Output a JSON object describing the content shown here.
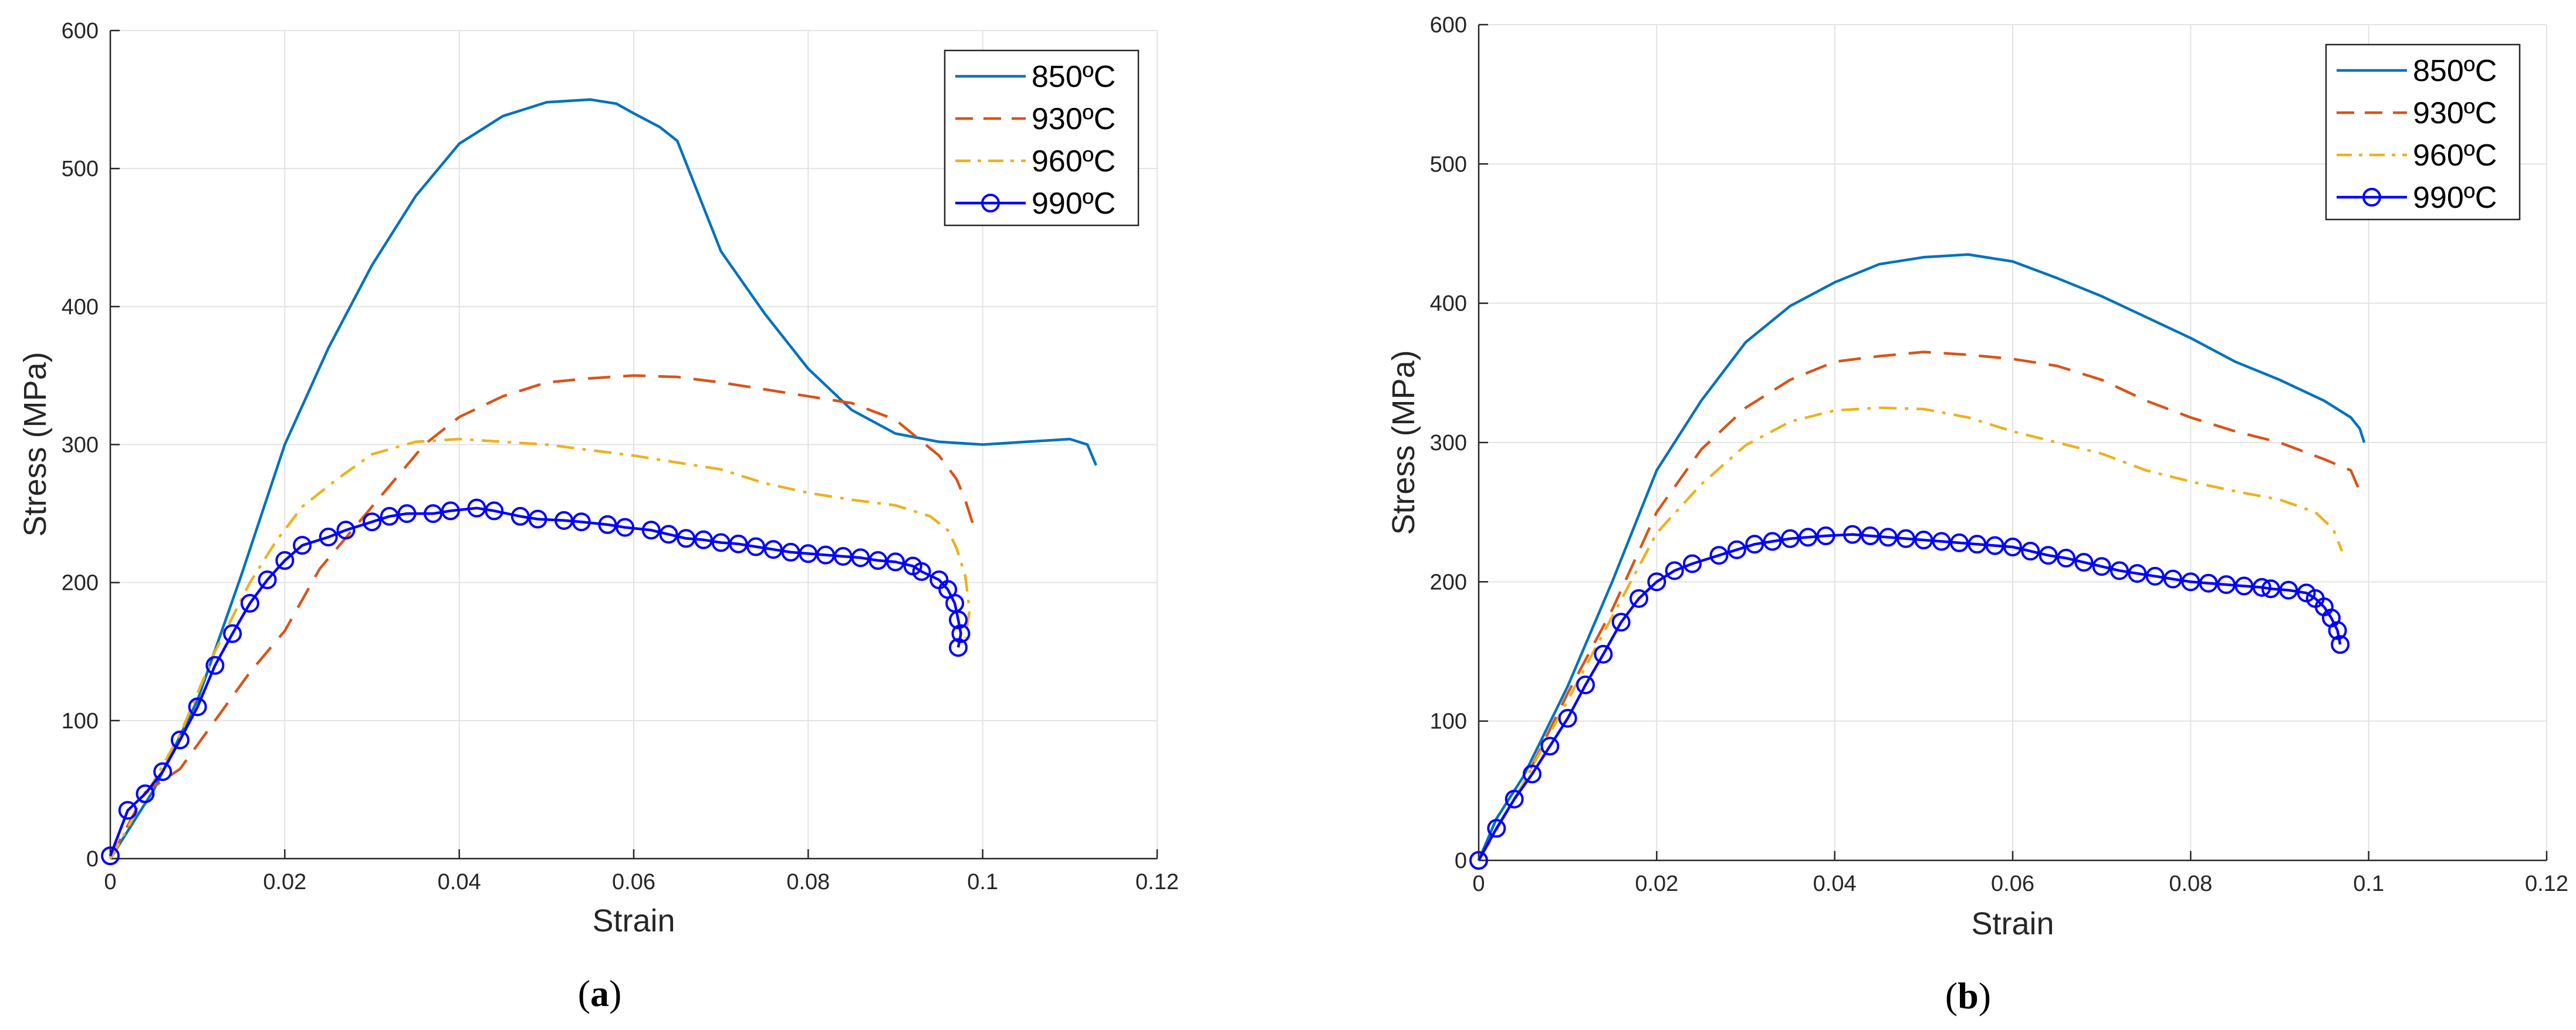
{
  "chart_data": [
    {
      "type": "line",
      "panel_label": "(a)",
      "panel_letter": "a",
      "xlabel": "Strain",
      "ylabel": "Stress (MPa)",
      "xlim": [
        0,
        0.12
      ],
      "ylim": [
        0,
        600
      ],
      "xticks": [
        0,
        0.02,
        0.04,
        0.06,
        0.08,
        0.1,
        0.12
      ],
      "xtick_labels": [
        "0",
        "0.02",
        "0.04",
        "0.06",
        "0.08",
        "0.1",
        "0.12"
      ],
      "yticks": [
        0,
        100,
        200,
        300,
        400,
        500,
        600
      ],
      "ytick_labels": [
        "0",
        "100",
        "200",
        "300",
        "400",
        "500",
        "600"
      ],
      "grid": true,
      "legend_position": "top-right",
      "series": [
        {
          "name": "850ºC",
          "style": "solid",
          "color": "#0072BD",
          "x": [
            0,
            0.005,
            0.01,
            0.015,
            0.02,
            0.025,
            0.03,
            0.035,
            0.04,
            0.045,
            0.05,
            0.055,
            0.058,
            0.06,
            0.063,
            0.065,
            0.07,
            0.075,
            0.08,
            0.085,
            0.09,
            0.095,
            0.1,
            0.105,
            0.11,
            0.112,
            0.113
          ],
          "y": [
            0,
            50,
            115,
            205,
            300,
            370,
            430,
            480,
            518,
            538,
            548,
            550,
            547,
            540,
            530,
            520,
            440,
            395,
            355,
            325,
            308,
            302,
            300,
            302,
            304,
            300,
            285
          ]
        },
        {
          "name": "930ºC",
          "style": "dashed",
          "color": "#D95319",
          "x": [
            0,
            0.004,
            0.008,
            0.012,
            0.016,
            0.02,
            0.024,
            0.028,
            0.032,
            0.036,
            0.04,
            0.045,
            0.05,
            0.055,
            0.06,
            0.065,
            0.07,
            0.075,
            0.08,
            0.085,
            0.09,
            0.095,
            0.097,
            0.098,
            0.099
          ],
          "y": [
            0,
            48,
            65,
            100,
            135,
            165,
            210,
            240,
            270,
            300,
            320,
            335,
            345,
            348,
            350,
            349,
            345,
            340,
            335,
            330,
            318,
            292,
            275,
            260,
            240
          ]
        },
        {
          "name": "960ºC",
          "style": "dashdot",
          "color": "#EDB120",
          "x": [
            0,
            0.004,
            0.008,
            0.012,
            0.016,
            0.019,
            0.022,
            0.026,
            0.03,
            0.035,
            0.04,
            0.045,
            0.05,
            0.055,
            0.06,
            0.065,
            0.07,
            0.075,
            0.08,
            0.085,
            0.09,
            0.094,
            0.096,
            0.097,
            0.098,
            0.0985,
            0.098
          ],
          "y": [
            0,
            45,
            90,
            150,
            200,
            230,
            255,
            275,
            293,
            302,
            304,
            302,
            300,
            296,
            292,
            287,
            282,
            272,
            265,
            260,
            256,
            248,
            238,
            225,
            205,
            180,
            160
          ]
        },
        {
          "name": "990ºC",
          "style": "circles",
          "color": "#0000FF",
          "x": [
            0,
            0.002,
            0.004,
            0.006,
            0.008,
            0.01,
            0.012,
            0.014,
            0.016,
            0.018,
            0.02,
            0.022,
            0.025,
            0.027,
            0.03,
            0.032,
            0.034,
            0.037,
            0.039,
            0.042,
            0.044,
            0.047,
            0.049,
            0.052,
            0.054,
            0.057,
            0.059,
            0.062,
            0.064,
            0.066,
            0.068,
            0.07,
            0.072,
            0.074,
            0.076,
            0.078,
            0.08,
            0.082,
            0.084,
            0.086,
            0.088,
            0.09,
            0.092,
            0.093,
            0.095,
            0.096,
            0.0968,
            0.0972,
            0.0975,
            0.0972
          ],
          "y": [
            2,
            35,
            47,
            63,
            86,
            110,
            140,
            163,
            185,
            202,
            216,
            227,
            233,
            238,
            244,
            248,
            250,
            250,
            252,
            254,
            252,
            248,
            246,
            245,
            244,
            242,
            240,
            238,
            235,
            232,
            231,
            229,
            228,
            226,
            224,
            222,
            221,
            220,
            219,
            218,
            216,
            215,
            212,
            208,
            202,
            195,
            185,
            173,
            163,
            153
          ]
        }
      ]
    },
    {
      "type": "line",
      "panel_label": "(b)",
      "panel_letter": "b",
      "xlabel": "Strain",
      "ylabel": "Stress (MPa)",
      "xlim": [
        0,
        0.12
      ],
      "ylim": [
        0,
        600
      ],
      "xticks": [
        0,
        0.02,
        0.04,
        0.06,
        0.08,
        0.1,
        0.12
      ],
      "xtick_labels": [
        "0",
        "0.02",
        "0.04",
        "0.06",
        "0.08",
        "0.1",
        "0.12"
      ],
      "yticks": [
        0,
        100,
        200,
        300,
        400,
        500,
        600
      ],
      "ytick_labels": [
        "0",
        "100",
        "200",
        "300",
        "400",
        "500",
        "600"
      ],
      "grid": true,
      "legend_position": "top-right",
      "series": [
        {
          "name": "850ºC",
          "style": "solid",
          "color": "#0072BD",
          "x": [
            0,
            0.002,
            0.005,
            0.01,
            0.015,
            0.02,
            0.025,
            0.03,
            0.035,
            0.04,
            0.045,
            0.05,
            0.055,
            0.06,
            0.065,
            0.07,
            0.075,
            0.08,
            0.085,
            0.09,
            0.095,
            0.098,
            0.099,
            0.0995
          ],
          "y": [
            0,
            30,
            60,
            125,
            200,
            280,
            330,
            372,
            398,
            415,
            428,
            433,
            435,
            430,
            418,
            405,
            390,
            375,
            358,
            345,
            330,
            318,
            310,
            300
          ]
        },
        {
          "name": "930ºC",
          "style": "dashed",
          "color": "#D95319",
          "x": [
            0,
            0.005,
            0.01,
            0.015,
            0.02,
            0.025,
            0.03,
            0.035,
            0.04,
            0.045,
            0.05,
            0.055,
            0.06,
            0.065,
            0.07,
            0.075,
            0.08,
            0.085,
            0.09,
            0.095,
            0.098,
            0.099
          ],
          "y": [
            0,
            55,
            120,
            180,
            250,
            295,
            325,
            345,
            358,
            362,
            365,
            363,
            360,
            355,
            345,
            330,
            318,
            308,
            300,
            288,
            280,
            265
          ]
        },
        {
          "name": "960ºC",
          "style": "dashdot",
          "color": "#EDB120",
          "x": [
            0,
            0.005,
            0.01,
            0.015,
            0.02,
            0.025,
            0.03,
            0.035,
            0.04,
            0.045,
            0.05,
            0.055,
            0.06,
            0.065,
            0.07,
            0.075,
            0.08,
            0.085,
            0.09,
            0.094,
            0.096,
            0.097
          ],
          "y": [
            0,
            55,
            115,
            175,
            235,
            270,
            298,
            315,
            323,
            325,
            324,
            318,
            308,
            300,
            292,
            280,
            272,
            265,
            259,
            250,
            238,
            222
          ]
        },
        {
          "name": "990ºC",
          "style": "circles",
          "color": "#0000FF",
          "x": [
            0,
            0.002,
            0.004,
            0.006,
            0.008,
            0.01,
            0.012,
            0.014,
            0.016,
            0.018,
            0.02,
            0.022,
            0.024,
            0.027,
            0.029,
            0.031,
            0.033,
            0.035,
            0.037,
            0.039,
            0.042,
            0.044,
            0.046,
            0.048,
            0.05,
            0.052,
            0.054,
            0.056,
            0.058,
            0.06,
            0.062,
            0.064,
            0.066,
            0.068,
            0.07,
            0.072,
            0.074,
            0.076,
            0.078,
            0.08,
            0.082,
            0.084,
            0.086,
            0.088,
            0.089,
            0.091,
            0.093,
            0.094,
            0.095,
            0.0958,
            0.0965,
            0.0968
          ],
          "y": [
            0,
            23,
            44,
            62,
            82,
            102,
            126,
            148,
            171,
            188,
            200,
            208,
            213,
            219,
            223,
            227,
            229,
            231,
            232,
            233,
            234,
            233,
            232,
            231,
            230,
            229,
            228,
            227,
            226,
            225,
            222,
            219,
            217,
            214,
            211,
            208,
            206,
            204,
            202,
            200,
            199,
            198,
            197,
            196,
            195,
            194,
            192,
            188,
            182,
            174,
            165,
            155
          ]
        }
      ]
    }
  ]
}
